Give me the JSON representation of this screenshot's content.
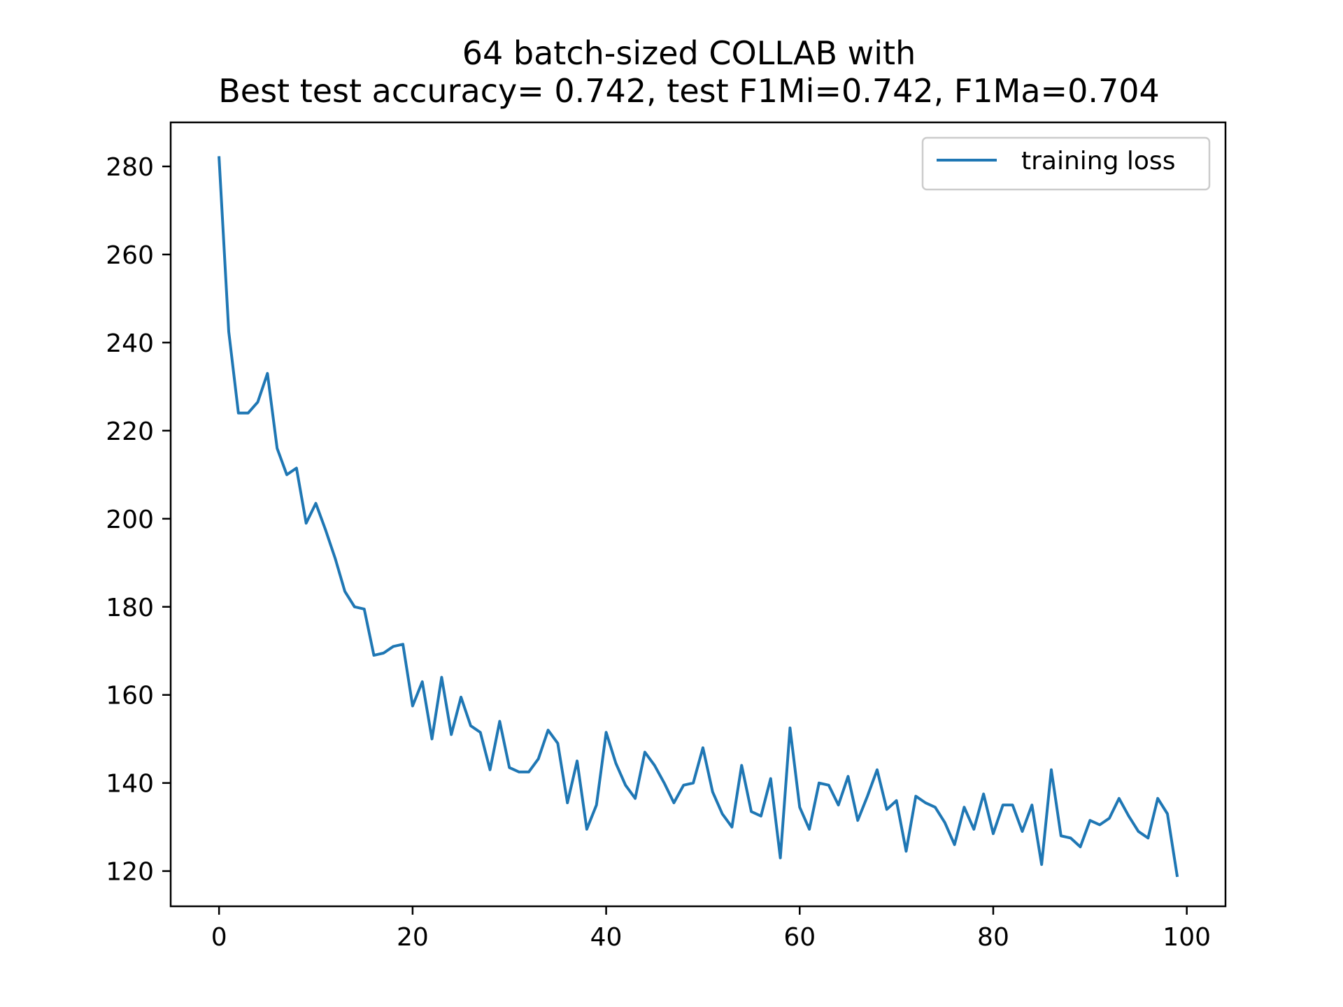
{
  "chart_data": {
    "type": "line",
    "title_lines": [
      "64 batch-sized COLLAB with",
      "Best test accuracy= 0.742, test F1Mi=0.742, F1Ma=0.704"
    ],
    "xlabel": "",
    "ylabel": "",
    "xlim": [
      -5,
      104
    ],
    "ylim": [
      112,
      290
    ],
    "x_ticks": [
      0,
      20,
      40,
      60,
      80,
      100
    ],
    "y_ticks": [
      120,
      140,
      160,
      180,
      200,
      220,
      240,
      260,
      280
    ],
    "grid": false,
    "legend_position": "top-right",
    "series": [
      {
        "name": "training loss",
        "color": "#1f77b4",
        "x": [
          0,
          1,
          2,
          3,
          4,
          5,
          6,
          7,
          8,
          9,
          10,
          11,
          12,
          13,
          14,
          15,
          16,
          17,
          18,
          19,
          20,
          21,
          22,
          23,
          24,
          25,
          26,
          27,
          28,
          29,
          30,
          31,
          32,
          33,
          34,
          35,
          36,
          37,
          38,
          39,
          40,
          41,
          42,
          43,
          44,
          45,
          46,
          47,
          48,
          49,
          50,
          51,
          52,
          53,
          54,
          55,
          56,
          57,
          58,
          59,
          60,
          61,
          62,
          63,
          64,
          65,
          66,
          67,
          68,
          69,
          70,
          71,
          72,
          73,
          74,
          75,
          76,
          77,
          78,
          79,
          80,
          81,
          82,
          83,
          84,
          85,
          86,
          87,
          88,
          89,
          90,
          91,
          92,
          93,
          94,
          95,
          96,
          97,
          98,
          99
        ],
        "y": [
          282,
          242.5,
          224,
          224,
          226.5,
          233,
          216,
          210,
          211.5,
          199,
          203.5,
          197.5,
          191,
          183.5,
          180,
          179.5,
          169,
          169.5,
          171,
          171.5,
          157.5,
          163,
          150,
          164,
          151,
          159.5,
          153,
          151.5,
          143,
          154,
          143.5,
          142.5,
          142.5,
          145.5,
          152,
          149,
          135.5,
          145,
          129.5,
          135,
          151.5,
          144.5,
          139.5,
          136.5,
          147,
          144,
          140,
          135.5,
          139.5,
          140,
          148,
          138,
          133,
          130,
          144,
          133.5,
          132.5,
          141,
          123,
          152.5,
          134.5,
          129.5,
          140,
          139.5,
          135,
          141.5,
          131.5,
          137,
          143,
          134,
          136,
          124.5,
          137,
          135.5,
          134.5,
          131,
          126,
          134.5,
          129.5,
          137.5,
          128.5,
          135,
          135,
          129,
          135,
          121.5,
          143,
          128,
          127.5,
          125.5,
          131.5,
          130.5,
          132,
          136.5,
          132.5,
          129,
          127.5,
          136.5,
          133,
          119
        ]
      }
    ]
  }
}
